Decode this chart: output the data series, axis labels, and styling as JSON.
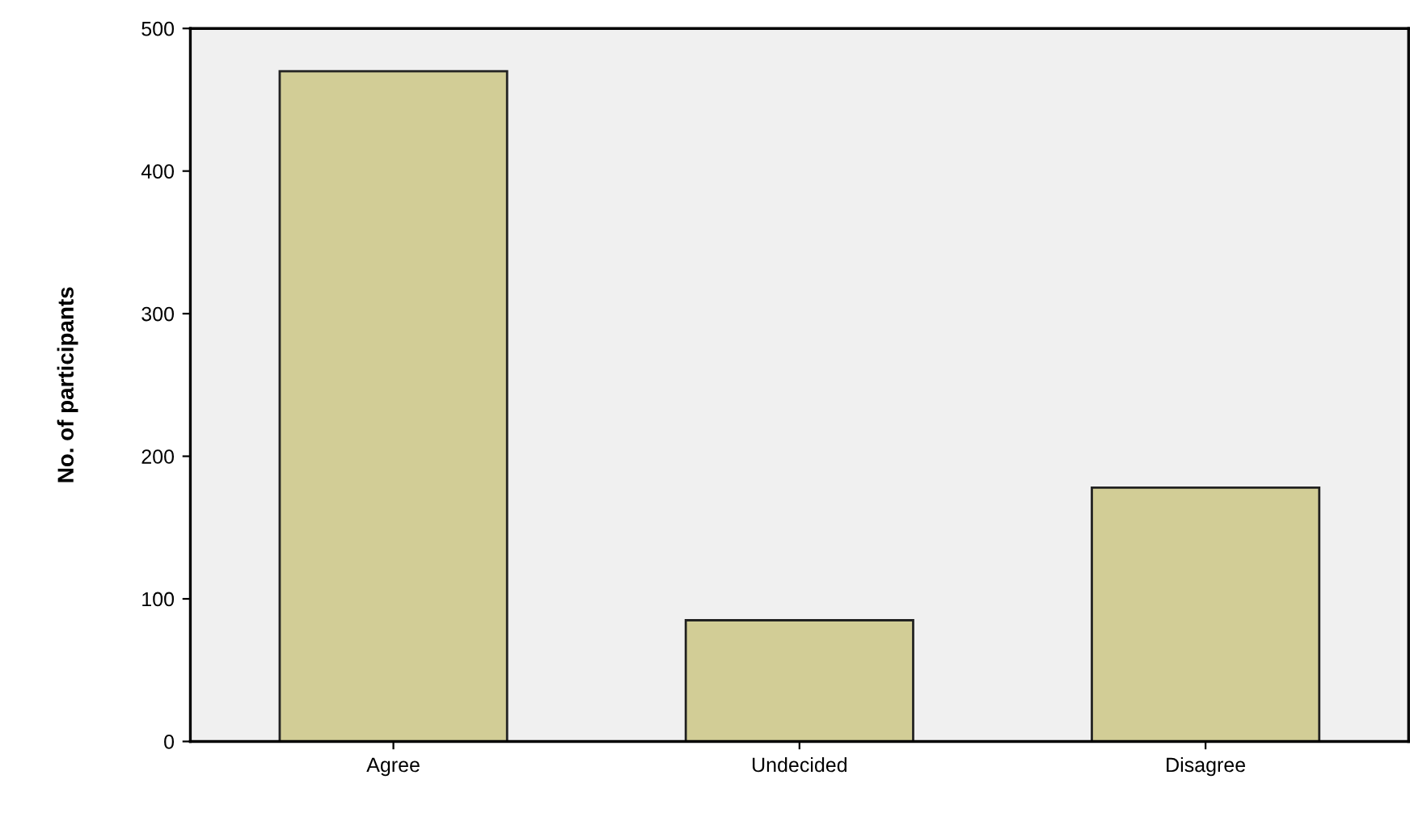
{
  "chart_data": {
    "type": "bar",
    "ylabel": "No. of participants",
    "categories": [
      "Agree",
      "Undecided",
      "Disagree"
    ],
    "values": [
      470,
      85,
      178
    ],
    "color": "#d2cd96",
    "ylim": [
      0,
      500
    ],
    "yticks": [
      0,
      100,
      200,
      300,
      400,
      500
    ],
    "grid": false
  }
}
